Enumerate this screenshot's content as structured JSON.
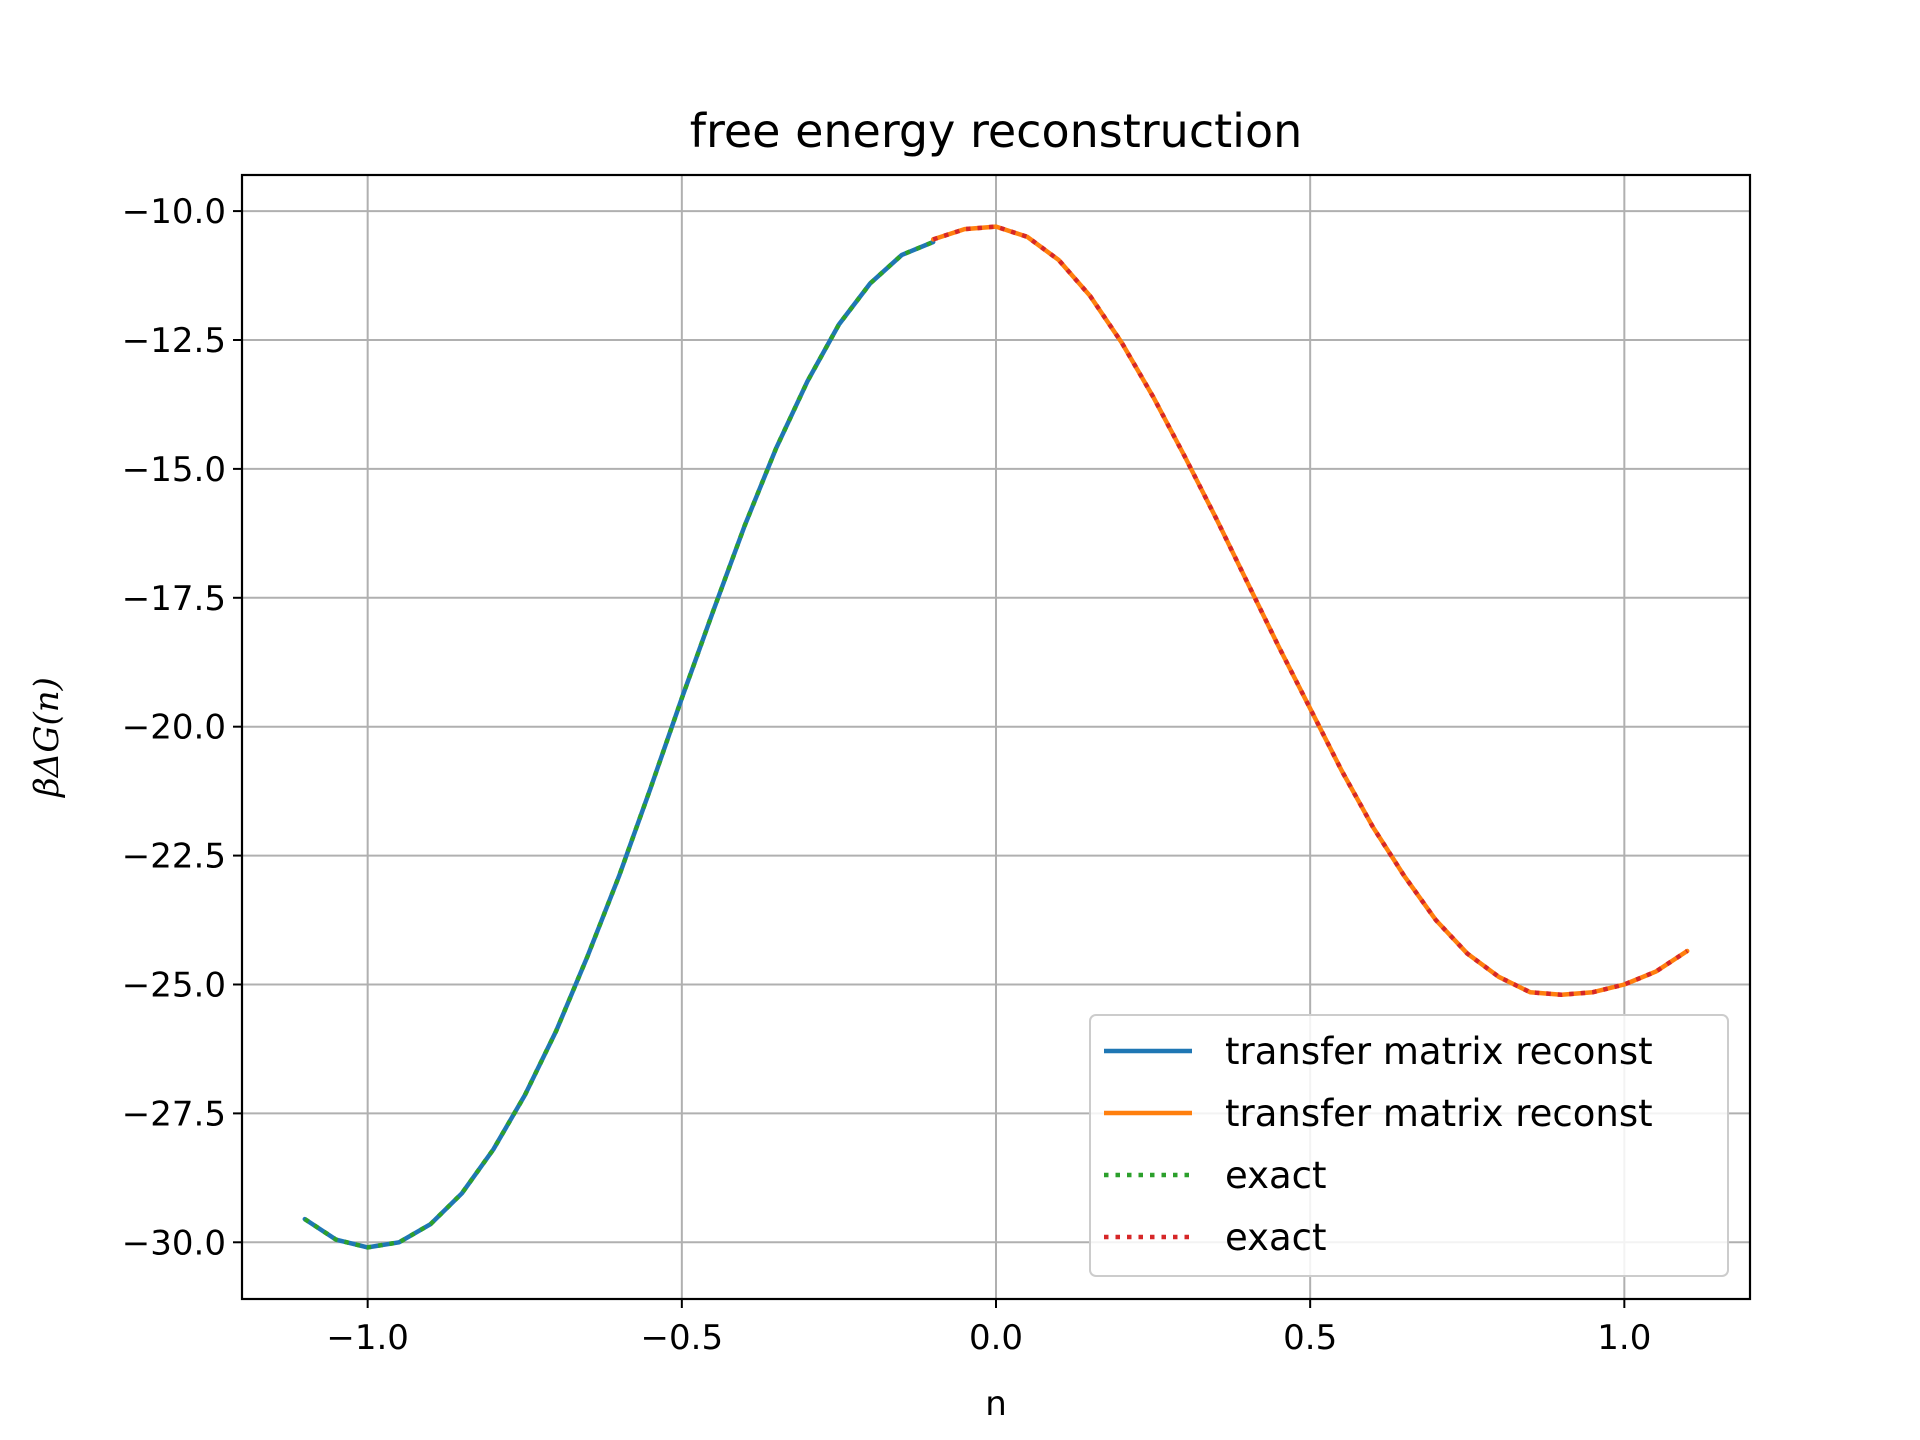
{
  "chart_data": {
    "type": "line",
    "title": "free energy reconstruction",
    "xlabel": "n",
    "ylabel": "βΔG(n)",
    "xlim": [
      -1.2,
      1.2
    ],
    "ylim": [
      -31.1,
      -9.3
    ],
    "xticks": [
      -1.0,
      -0.5,
      0.0,
      0.5,
      1.0
    ],
    "xtick_labels": [
      "−1.0",
      "−0.5",
      "0.0",
      "0.5",
      "1.0"
    ],
    "yticks": [
      -10.0,
      -12.5,
      -15.0,
      -17.5,
      -20.0,
      -22.5,
      -25.0,
      -27.5,
      -30.0
    ],
    "ytick_labels": [
      "−10.0",
      "−12.5",
      "−15.0",
      "−17.5",
      "−20.0",
      "−22.5",
      "−25.0",
      "−27.5",
      "−30.0"
    ],
    "grid": true,
    "legend_position": "lower-right",
    "series": [
      {
        "name": "transfer matrix reconst",
        "color": "#1f77b4",
        "style": "solid",
        "x": [
          -1.1,
          -1.05,
          -1.0,
          -0.95,
          -0.9,
          -0.85,
          -0.8,
          -0.75,
          -0.7,
          -0.65,
          -0.6,
          -0.55,
          -0.5,
          -0.45,
          -0.4,
          -0.35,
          -0.3,
          -0.25,
          -0.2,
          -0.15,
          -0.1
        ],
        "y": [
          -29.55,
          -29.95,
          -30.1,
          -30.0,
          -29.65,
          -29.05,
          -28.2,
          -27.15,
          -25.9,
          -24.45,
          -22.9,
          -21.2,
          -19.45,
          -17.75,
          -16.1,
          -14.6,
          -13.3,
          -12.2,
          -11.4,
          -10.85,
          -10.6
        ]
      },
      {
        "name": "transfer matrix reconst",
        "color": "#ff7f0e",
        "style": "solid",
        "x": [
          -0.1,
          -0.05,
          0.0,
          0.05,
          0.1,
          0.15,
          0.2,
          0.25,
          0.3,
          0.35,
          0.4,
          0.45,
          0.5,
          0.55,
          0.6,
          0.65,
          0.7,
          0.75,
          0.8,
          0.85,
          0.9,
          0.95,
          1.0,
          1.05,
          1.1
        ],
        "y": [
          -10.55,
          -10.35,
          -10.3,
          -10.5,
          -10.95,
          -11.65,
          -12.55,
          -13.6,
          -14.75,
          -15.95,
          -17.2,
          -18.45,
          -19.65,
          -20.85,
          -21.95,
          -22.9,
          -23.75,
          -24.4,
          -24.85,
          -25.15,
          -25.2,
          -25.15,
          -25.0,
          -24.75,
          -24.35
        ]
      },
      {
        "name": "exact",
        "color": "#2ca02c",
        "style": "dotted",
        "x": [
          -1.1,
          -1.05,
          -1.0,
          -0.95,
          -0.9,
          -0.85,
          -0.8,
          -0.75,
          -0.7,
          -0.65,
          -0.6,
          -0.55,
          -0.5,
          -0.45,
          -0.4,
          -0.35,
          -0.3,
          -0.25,
          -0.2,
          -0.15,
          -0.1
        ],
        "y": [
          -29.55,
          -29.95,
          -30.1,
          -30.0,
          -29.65,
          -29.05,
          -28.2,
          -27.15,
          -25.9,
          -24.45,
          -22.9,
          -21.2,
          -19.45,
          -17.75,
          -16.1,
          -14.6,
          -13.3,
          -12.2,
          -11.4,
          -10.85,
          -10.6
        ]
      },
      {
        "name": "exact",
        "color": "#d62728",
        "style": "dotted",
        "x": [
          -0.1,
          -0.05,
          0.0,
          0.05,
          0.1,
          0.15,
          0.2,
          0.25,
          0.3,
          0.35,
          0.4,
          0.45,
          0.5,
          0.55,
          0.6,
          0.65,
          0.7,
          0.75,
          0.8,
          0.85,
          0.9,
          0.95,
          1.0,
          1.05,
          1.1
        ],
        "y": [
          -10.55,
          -10.35,
          -10.3,
          -10.5,
          -10.95,
          -11.65,
          -12.55,
          -13.6,
          -14.75,
          -15.95,
          -17.2,
          -18.45,
          -19.65,
          -20.85,
          -21.95,
          -22.9,
          -23.75,
          -24.4,
          -24.85,
          -25.15,
          -25.2,
          -25.15,
          -25.0,
          -24.75,
          -24.35
        ]
      }
    ]
  }
}
